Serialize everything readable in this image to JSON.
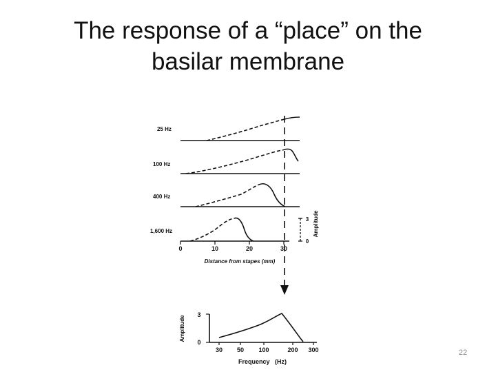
{
  "slide": {
    "title_line1": "The response of a “place” on the",
    "title_line2": "basilar membrane",
    "page_number": "22"
  },
  "top_panel": {
    "curve_labels": [
      "25 Hz",
      "100 Hz",
      "400 Hz",
      "1,600 Hz"
    ],
    "x_ticks": [
      "0",
      "10",
      "20",
      "30"
    ],
    "x_label": "Distance from stapes (mm)",
    "amplitude_scale_ticks": [
      "3",
      "0"
    ],
    "amplitude_label": "Amplitude"
  },
  "bottom_panel": {
    "x_ticks": [
      "30",
      "50",
      "100",
      "200",
      "300"
    ],
    "y_ticks": [
      "3",
      "0"
    ],
    "x_label": "Frequency   (Hz)",
    "y_label": "Amplitude"
  },
  "colors": {
    "ink": "#111111",
    "page_number": "#888888"
  }
}
